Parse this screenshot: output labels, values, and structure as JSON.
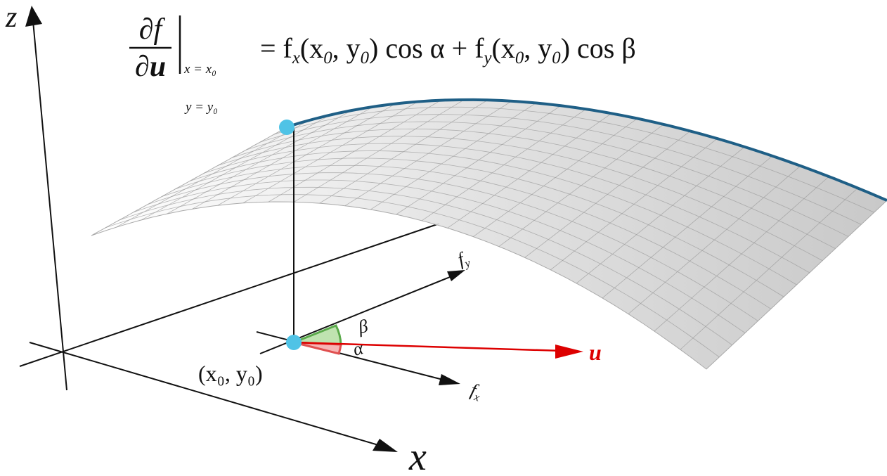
{
  "axes": {
    "z": "z",
    "x": "x"
  },
  "formula": {
    "numerator": "∂f",
    "denominator": "∂u",
    "condition_x": "x = x₀",
    "condition_y": "y = y₀",
    "rhs": [
      "= f",
      "x",
      "(x",
      "0",
      ", y",
      "0",
      ") cos α + f",
      "y",
      "(x",
      "0",
      ", y",
      "0",
      ") cos β"
    ]
  },
  "labels": {
    "f_y": [
      "f",
      "y"
    ],
    "f_x": [
      "f",
      "x"
    ],
    "beta": "β",
    "alpha": "α",
    "u": "u",
    "point": "(x₀, y₀)"
  }
}
